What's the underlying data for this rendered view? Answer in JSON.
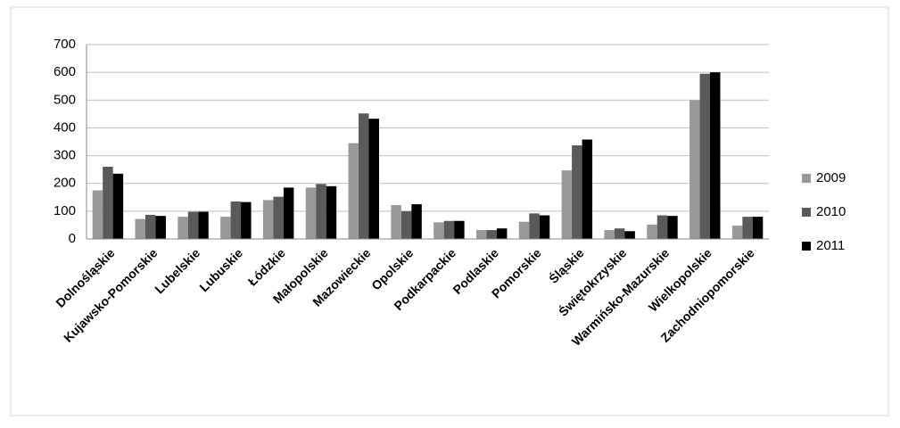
{
  "chart_data": {
    "type": "bar",
    "categories": [
      "Dolnośląskie",
      "Kujawsko-Pomorskie",
      "Lubelskie",
      "Lubuskie",
      "Łódzkie",
      "Małopolskie",
      "Mazowieckie",
      "Opolskie",
      "Podkarpackie",
      "Podlaskie",
      "Pomorskie",
      "Śląskie",
      "Świętokrzyskie",
      "Warmińsko-Mazurskie",
      "Wielkopolskie",
      "Zachodniopomorskie"
    ],
    "series": [
      {
        "name": "2009",
        "color": "#999999",
        "values": [
          175,
          72,
          80,
          80,
          140,
          185,
          345,
          122,
          60,
          32,
          62,
          247,
          32,
          52,
          500,
          48
        ]
      },
      {
        "name": "2010",
        "color": "#5a5a5a",
        "values": [
          260,
          87,
          98,
          135,
          152,
          198,
          452,
          100,
          65,
          32,
          92,
          337,
          38,
          85,
          595,
          80
        ]
      },
      {
        "name": "2011",
        "color": "#000000",
        "values": [
          235,
          83,
          98,
          133,
          185,
          190,
          433,
          125,
          65,
          38,
          85,
          358,
          28,
          83,
          600,
          80
        ]
      }
    ],
    "ylim": [
      0,
      700
    ],
    "yticks": [
      0,
      100,
      200,
      300,
      400,
      500,
      600,
      700
    ],
    "grid": true,
    "legend": "right"
  }
}
